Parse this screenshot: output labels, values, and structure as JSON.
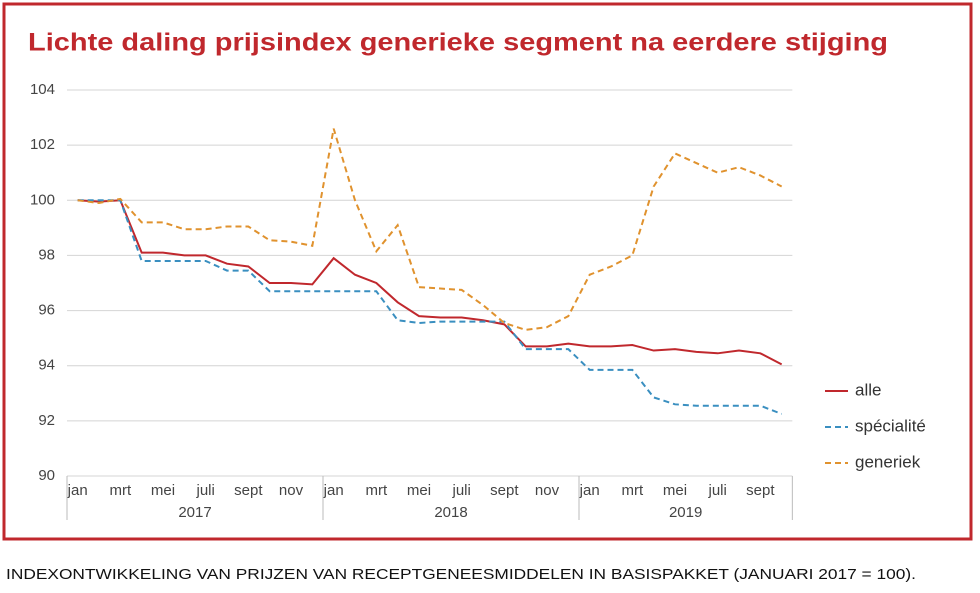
{
  "chart_data": {
    "type": "line",
    "title": "Lichte daling prijsindex generieke segment na eerdere stijging",
    "caption": "INDEXONTWIKKELING VAN PRIJZEN VAN RECEPTGENEESMIDDELEN IN BASISPAKKET (JANUARI 2017 = 100).",
    "categories": [
      "jan",
      null,
      "mrt",
      null,
      "mei",
      null,
      "juli",
      null,
      "sept",
      null,
      "nov",
      null,
      "jan",
      null,
      "mrt",
      null,
      "mei",
      null,
      "juli",
      null,
      "sept",
      null,
      "nov",
      null,
      "jan",
      null,
      "mrt",
      null,
      "mei",
      null,
      "juli",
      null,
      "sept",
      null
    ],
    "years": [
      "2017",
      "2018",
      "2019"
    ],
    "series": [
      {
        "name": "alle",
        "color": "#c0282d",
        "dash": false,
        "values": [
          100,
          99.95,
          100,
          98.1,
          98.1,
          98.0,
          98.0,
          97.7,
          97.6,
          97.0,
          97.0,
          96.95,
          97.9,
          97.3,
          97.0,
          96.3,
          95.8,
          95.75,
          95.75,
          95.65,
          95.5,
          94.7,
          94.7,
          94.8,
          94.7,
          94.7,
          94.75,
          94.55,
          94.6,
          94.5,
          94.45,
          94.55,
          94.45,
          94.05
        ]
      },
      {
        "name": "spécialité",
        "color": "#3a8fc0",
        "dash": true,
        "values": [
          100,
          100,
          100,
          97.8,
          97.8,
          97.8,
          97.8,
          97.45,
          97.45,
          96.7,
          96.7,
          96.7,
          96.7,
          96.7,
          96.7,
          95.65,
          95.55,
          95.6,
          95.6,
          95.6,
          95.6,
          94.6,
          94.6,
          94.6,
          93.85,
          93.85,
          93.85,
          92.85,
          92.6,
          92.55,
          92.55,
          92.55,
          92.55,
          92.25
        ]
      },
      {
        "name": "generiek",
        "color": "#e0922e",
        "dash": true,
        "values": [
          100,
          99.9,
          100.05,
          99.2,
          99.2,
          98.95,
          98.95,
          99.05,
          99.05,
          98.55,
          98.5,
          98.35,
          102.6,
          100.0,
          98.15,
          99.1,
          96.85,
          96.8,
          96.75,
          96.2,
          95.55,
          95.3,
          95.4,
          95.8,
          97.3,
          97.6,
          98.0,
          100.5,
          101.7,
          101.35,
          101.0,
          101.2,
          100.9,
          100.5
        ]
      }
    ],
    "ylim": [
      90,
      104
    ],
    "yticks": [
      90,
      92,
      94,
      96,
      98,
      100,
      102,
      104
    ],
    "grid": true,
    "legend": "right"
  }
}
